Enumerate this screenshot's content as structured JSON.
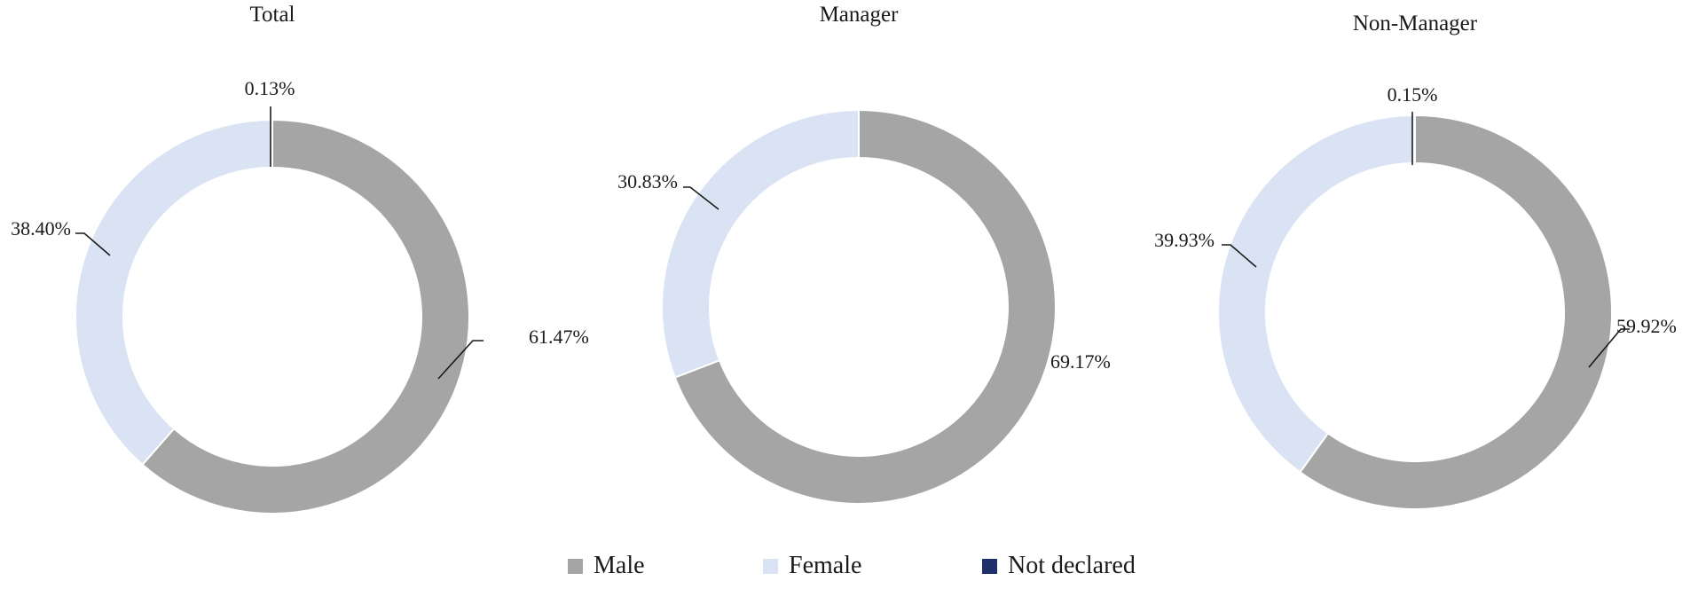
{
  "colors": {
    "Male": "#a5a5a5",
    "Female": "#dae3f3",
    "Not declared": "#1f2f6b"
  },
  "legend": {
    "items": [
      "Male",
      "Female",
      "Not declared"
    ]
  },
  "chart_data": [
    {
      "type": "pie",
      "subtype": "donut",
      "title": "Total",
      "categories": [
        "Male",
        "Female",
        "Not declared"
      ],
      "values": [
        61.47,
        38.4,
        0.13
      ],
      "labels": [
        "61.47%",
        "38.40%",
        "0.13%"
      ]
    },
    {
      "type": "pie",
      "subtype": "donut",
      "title": "Manager",
      "categories": [
        "Male",
        "Female"
      ],
      "values": [
        69.17,
        30.83
      ],
      "labels": [
        "69.17%",
        "30.83%"
      ]
    },
    {
      "type": "pie",
      "subtype": "donut",
      "title": "Non-Manager",
      "categories": [
        "Male",
        "Female",
        "Not declared"
      ],
      "values": [
        59.92,
        39.93,
        0.15
      ],
      "labels": [
        "59.92%",
        "39.93%",
        "0.15%"
      ]
    }
  ]
}
